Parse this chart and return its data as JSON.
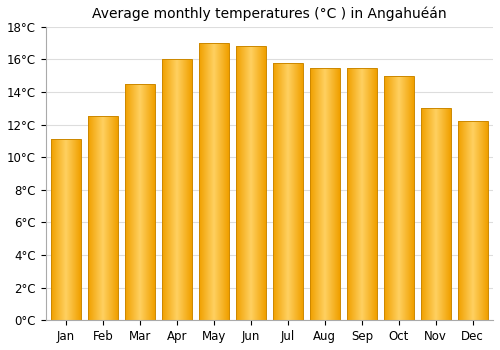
{
  "title": "Average monthly temperatures (°C ) in Angahuéán",
  "months": [
    "Jan",
    "Feb",
    "Mar",
    "Apr",
    "May",
    "Jun",
    "Jul",
    "Aug",
    "Sep",
    "Oct",
    "Nov",
    "Dec"
  ],
  "values": [
    11.1,
    12.5,
    14.5,
    16.0,
    17.0,
    16.8,
    15.8,
    15.5,
    15.5,
    15.0,
    13.0,
    12.2
  ],
  "bar_color_left": "#F0A000",
  "bar_color_center": "#FFD060",
  "bar_color_right": "#F0A000",
  "bar_edge_color": "#CC8800",
  "ylim": [
    0,
    18
  ],
  "ytick_step": 2,
  "background_color": "#ffffff",
  "grid_color": "#dddddd",
  "title_fontsize": 10,
  "tick_fontsize": 8.5,
  "bar_width": 0.82
}
